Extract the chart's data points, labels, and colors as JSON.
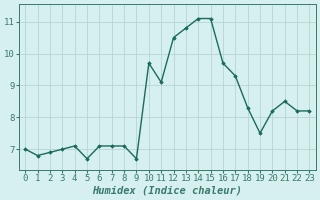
{
  "x": [
    0,
    1,
    2,
    3,
    4,
    5,
    6,
    7,
    8,
    9,
    10,
    11,
    12,
    13,
    14,
    15,
    16,
    17,
    18,
    19,
    20,
    21,
    22,
    23
  ],
  "y": [
    7.0,
    6.8,
    6.9,
    7.0,
    7.1,
    6.7,
    7.1,
    7.1,
    7.1,
    6.7,
    9.7,
    9.1,
    10.5,
    10.8,
    11.1,
    11.1,
    9.7,
    9.3,
    8.3,
    7.5,
    8.2,
    8.5,
    8.2,
    8.2
  ],
  "line_color": "#1a6b5a",
  "marker": "D",
  "marker_size": 1.8,
  "bg_color": "#d6f0f0",
  "grid_color": "#b8d4d4",
  "xlabel": "Humidex (Indice chaleur)",
  "xlim": [
    -0.5,
    23.5
  ],
  "ylim": [
    6.35,
    11.55
  ],
  "yticks": [
    7,
    8,
    9,
    10,
    11
  ],
  "xticks": [
    0,
    1,
    2,
    3,
    4,
    5,
    6,
    7,
    8,
    9,
    10,
    11,
    12,
    13,
    14,
    15,
    16,
    17,
    18,
    19,
    20,
    21,
    22,
    23
  ],
  "tick_fontsize": 6.5,
  "label_fontsize": 7.5,
  "line_width": 1.0,
  "spine_color": "#3a7a6a",
  "tick_color": "#3a7a6a"
}
